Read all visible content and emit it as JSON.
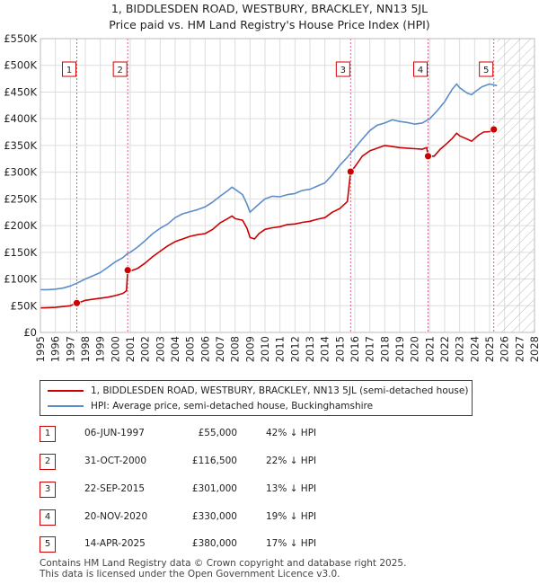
{
  "title_line1": "1, BIDDLESDEN ROAD, WESTBURY, BRACKLEY, NN13 5JL",
  "title_line2": "Price paid vs. HM Land Registry's House Price Index (HPI)",
  "colors": {
    "property": "#cc0000",
    "hpi": "#5b8ec9",
    "hatch": "#bbbbbb",
    "grid": "#dddddd",
    "marker_line": "#e06080"
  },
  "chart_data": {
    "type": "line",
    "x_range": [
      1995,
      2028
    ],
    "ylim": [
      0,
      550000
    ],
    "y_ticks": [
      {
        "value": 0,
        "label": "£0"
      },
      {
        "value": 50000,
        "label": "£50K"
      },
      {
        "value": 100000,
        "label": "£100K"
      },
      {
        "value": 150000,
        "label": "£150K"
      },
      {
        "value": 200000,
        "label": "£200K"
      },
      {
        "value": 250000,
        "label": "£250K"
      },
      {
        "value": 300000,
        "label": "£300K"
      },
      {
        "value": 350000,
        "label": "£350K"
      },
      {
        "value": 400000,
        "label": "£400K"
      },
      {
        "value": 450000,
        "label": "£450K"
      },
      {
        "value": 500000,
        "label": "£500K"
      },
      {
        "value": 550000,
        "label": "£550K"
      }
    ],
    "x_ticks": [
      "1995",
      "1996",
      "1997",
      "1998",
      "1999",
      "2000",
      "2001",
      "2002",
      "2003",
      "2004",
      "2005",
      "2006",
      "2007",
      "2008",
      "2009",
      "2010",
      "2011",
      "2012",
      "2013",
      "2014",
      "2015",
      "2016",
      "2017",
      "2018",
      "2019",
      "2020",
      "2021",
      "2022",
      "2023",
      "2024",
      "2025",
      "2026",
      "2027",
      "2028"
    ],
    "hatch_from": 2025.5,
    "series": [
      {
        "name": "1, BIDDLESDEN ROAD, WESTBURY, BRACKLEY, NN13 5JL (semi-detached house)",
        "color": "#cc0000",
        "points": [
          [
            1995,
            46000
          ],
          [
            1995.5,
            46500
          ],
          [
            1996,
            47000
          ],
          [
            1996.5,
            48500
          ],
          [
            1997,
            50000
          ],
          [
            1997.43,
            55000
          ],
          [
            1997.8,
            58000
          ],
          [
            1998,
            60000
          ],
          [
            1998.5,
            62000
          ],
          [
            1999,
            64000
          ],
          [
            1999.5,
            66000
          ],
          [
            2000,
            69000
          ],
          [
            2000.5,
            73000
          ],
          [
            2000.75,
            78000
          ],
          [
            2000.83,
            116500
          ],
          [
            2001,
            115000
          ],
          [
            2001.5,
            120000
          ],
          [
            2002,
            130000
          ],
          [
            2002.5,
            142000
          ],
          [
            2003,
            152000
          ],
          [
            2003.5,
            162000
          ],
          [
            2004,
            170000
          ],
          [
            2004.5,
            175000
          ],
          [
            2005,
            180000
          ],
          [
            2005.5,
            183000
          ],
          [
            2006,
            185000
          ],
          [
            2006.5,
            193000
          ],
          [
            2007,
            205000
          ],
          [
            2007.5,
            213000
          ],
          [
            2007.8,
            218000
          ],
          [
            2008,
            213000
          ],
          [
            2008.5,
            210000
          ],
          [
            2008.8,
            195000
          ],
          [
            2009,
            178000
          ],
          [
            2009.3,
            175000
          ],
          [
            2009.6,
            185000
          ],
          [
            2010,
            193000
          ],
          [
            2010.5,
            196000
          ],
          [
            2011,
            198000
          ],
          [
            2011.5,
            202000
          ],
          [
            2012,
            203000
          ],
          [
            2012.5,
            206000
          ],
          [
            2013,
            208000
          ],
          [
            2013.5,
            212000
          ],
          [
            2014,
            215000
          ],
          [
            2014.5,
            225000
          ],
          [
            2015,
            232000
          ],
          [
            2015.5,
            245000
          ],
          [
            2015.72,
            301000
          ],
          [
            2016,
            310000
          ],
          [
            2016.5,
            330000
          ],
          [
            2017,
            340000
          ],
          [
            2017.5,
            345000
          ],
          [
            2018,
            350000
          ],
          [
            2018.5,
            348000
          ],
          [
            2019,
            346000
          ],
          [
            2019.5,
            345000
          ],
          [
            2020,
            344000
          ],
          [
            2020.5,
            343000
          ],
          [
            2020.8,
            346000
          ],
          [
            2020.89,
            330000
          ],
          [
            2021,
            330000
          ],
          [
            2021.3,
            330000
          ],
          [
            2021.7,
            343000
          ],
          [
            2022,
            350000
          ],
          [
            2022.5,
            363000
          ],
          [
            2022.8,
            373000
          ],
          [
            2023,
            368000
          ],
          [
            2023.5,
            362000
          ],
          [
            2023.8,
            358000
          ],
          [
            2024,
            363000
          ],
          [
            2024.3,
            370000
          ],
          [
            2024.6,
            375000
          ],
          [
            2025,
            376000
          ],
          [
            2025.28,
            380000
          ],
          [
            2025.45,
            378000
          ]
        ]
      },
      {
        "name": "HPI: Average price, semi-detached house, Buckinghamshire",
        "color": "#5b8ec9",
        "points": [
          [
            1995,
            80000
          ],
          [
            1995.5,
            80000
          ],
          [
            1996,
            81000
          ],
          [
            1996.5,
            83000
          ],
          [
            1997,
            87000
          ],
          [
            1997.5,
            93000
          ],
          [
            1998,
            100000
          ],
          [
            1998.5,
            106000
          ],
          [
            1999,
            112000
          ],
          [
            1999.5,
            122000
          ],
          [
            2000,
            132000
          ],
          [
            2000.5,
            140000
          ],
          [
            2000.83,
            148000
          ],
          [
            2001,
            150000
          ],
          [
            2001.5,
            160000
          ],
          [
            2002,
            172000
          ],
          [
            2002.5,
            185000
          ],
          [
            2003,
            195000
          ],
          [
            2003.5,
            203000
          ],
          [
            2004,
            215000
          ],
          [
            2004.5,
            222000
          ],
          [
            2005,
            226000
          ],
          [
            2005.5,
            230000
          ],
          [
            2006,
            235000
          ],
          [
            2006.5,
            244000
          ],
          [
            2007,
            255000
          ],
          [
            2007.5,
            265000
          ],
          [
            2007.8,
            272000
          ],
          [
            2008,
            268000
          ],
          [
            2008.5,
            258000
          ],
          [
            2008.8,
            240000
          ],
          [
            2009,
            225000
          ],
          [
            2009.5,
            238000
          ],
          [
            2010,
            250000
          ],
          [
            2010.5,
            255000
          ],
          [
            2011,
            254000
          ],
          [
            2011.5,
            258000
          ],
          [
            2012,
            260000
          ],
          [
            2012.5,
            266000
          ],
          [
            2013,
            268000
          ],
          [
            2013.5,
            274000
          ],
          [
            2014,
            280000
          ],
          [
            2014.5,
            295000
          ],
          [
            2015,
            313000
          ],
          [
            2015.5,
            328000
          ],
          [
            2016,
            345000
          ],
          [
            2016.5,
            362000
          ],
          [
            2017,
            378000
          ],
          [
            2017.5,
            388000
          ],
          [
            2018,
            392000
          ],
          [
            2018.5,
            398000
          ],
          [
            2019,
            395000
          ],
          [
            2019.5,
            393000
          ],
          [
            2020,
            390000
          ],
          [
            2020.5,
            392000
          ],
          [
            2021,
            400000
          ],
          [
            2021.5,
            415000
          ],
          [
            2022,
            432000
          ],
          [
            2022.5,
            455000
          ],
          [
            2022.8,
            465000
          ],
          [
            2023,
            458000
          ],
          [
            2023.5,
            448000
          ],
          [
            2023.8,
            445000
          ],
          [
            2024,
            450000
          ],
          [
            2024.5,
            460000
          ],
          [
            2025,
            465000
          ],
          [
            2025.5,
            462000
          ]
        ]
      }
    ],
    "sales": [
      {
        "num": "1",
        "x": 1997.43,
        "y": 55000
      },
      {
        "num": "2",
        "x": 2000.83,
        "y": 116500
      },
      {
        "num": "3",
        "x": 2015.72,
        "y": 301000
      },
      {
        "num": "4",
        "x": 2020.89,
        "y": 330000
      },
      {
        "num": "5",
        "x": 2025.28,
        "y": 380000
      }
    ]
  },
  "legend": {
    "property_label": "1, BIDDLESDEN ROAD, WESTBURY, BRACKLEY, NN13 5JL (semi-detached house)",
    "hpi_label": "HPI: Average price, semi-detached house, Buckinghamshire"
  },
  "sales_table": [
    {
      "num": "1",
      "date": "06-JUN-1997",
      "price": "£55,000",
      "hpi": "42% ↓ HPI"
    },
    {
      "num": "2",
      "date": "31-OCT-2000",
      "price": "£116,500",
      "hpi": "22% ↓ HPI"
    },
    {
      "num": "3",
      "date": "22-SEP-2015",
      "price": "£301,000",
      "hpi": "13% ↓ HPI"
    },
    {
      "num": "4",
      "date": "20-NOV-2020",
      "price": "£330,000",
      "hpi": "19% ↓ HPI"
    },
    {
      "num": "5",
      "date": "14-APR-2025",
      "price": "£380,000",
      "hpi": "17% ↓ HPI"
    }
  ],
  "footer": {
    "line1": "Contains HM Land Registry data © Crown copyright and database right 2025.",
    "line2": "This data is licensed under the Open Government Licence v3.0."
  }
}
